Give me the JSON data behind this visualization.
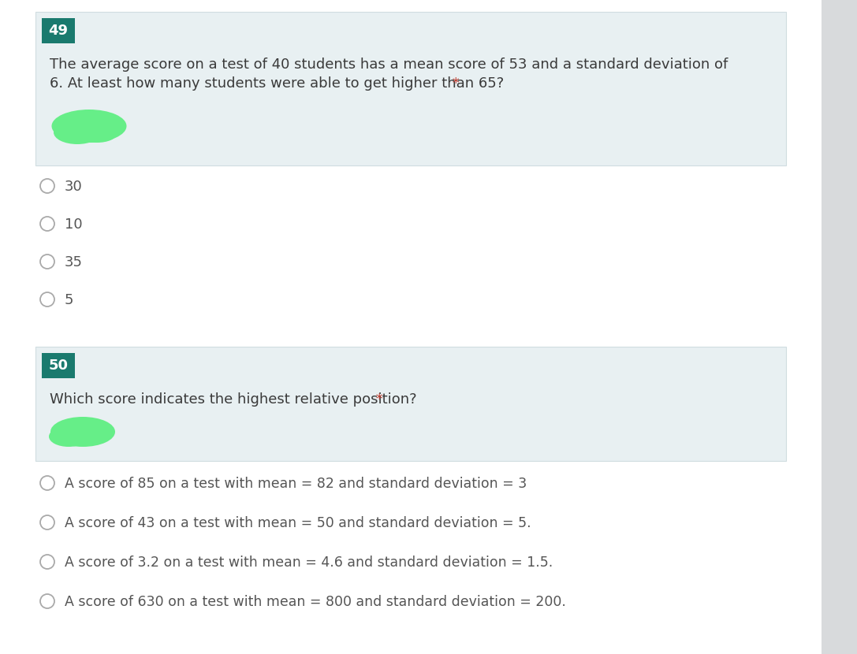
{
  "bg_color": "#ffffff",
  "box_bg_color": "#e8f0f2",
  "box_border_color": "#d0dde0",
  "number_box_color": "#1a7a6e",
  "number_box_text_color": "#ffffff",
  "question_text_color": "#3a3a3a",
  "asterisk_color": "#c0392b",
  "option_text_color": "#555555",
  "radio_border_color": "#aaaaaa",
  "highlight_color": "#66ee88",
  "right_panel_color": "#d8dadc",
  "q1_number": "49",
  "q1_text_line1": "The average score on a test of 40 students has a mean score of 53 and a standard deviation of",
  "q1_text_line2": "6. At least how many students were able to get higher than 65?",
  "q1_options": [
    "30",
    "10",
    "35",
    "5"
  ],
  "q2_number": "50",
  "q2_text": "Which score indicates the highest relative position?",
  "q2_options": [
    "A score of 85 on a test with mean = 82 and standard deviation = 3",
    "A score of 43 on a test with mean = 50 and standard deviation = 5.",
    "A score of 3.2 on a test with mean = 4.6 and standard deviation = 1.5.",
    "A score of 630 on a test with mean = 800 and standard deviation = 200."
  ]
}
